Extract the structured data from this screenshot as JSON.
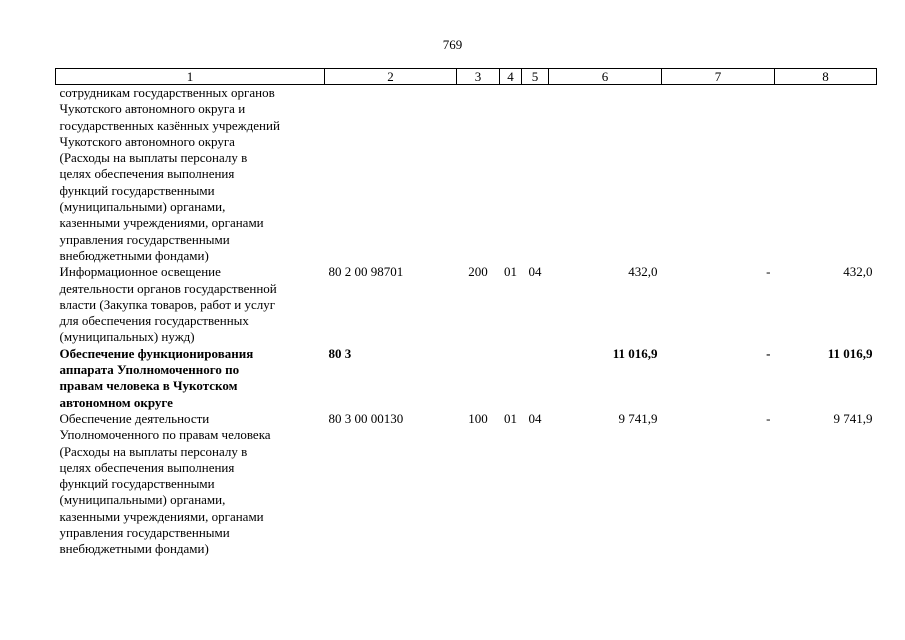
{
  "page_number": "769",
  "header": [
    "1",
    "2",
    "3",
    "4",
    "5",
    "6",
    "7",
    "8"
  ],
  "rows": [
    {
      "bold": false,
      "description": [
        "сотрудникам государственных органов",
        "Чукотского автономного округа и",
        "государственных казённых учреждений",
        "Чукотского автономного округа",
        "(Расходы на выплаты персоналу в",
        "целях обеспечения выполнения",
        "функций государственными",
        "(муниципальными) органами,",
        "казенными учреждениями, органами",
        "управления государственными",
        "внебюджетными фондами)"
      ],
      "code": "",
      "type": "",
      "section": "",
      "subsection": "",
      "col6": "",
      "col7": "",
      "col8": ""
    },
    {
      "bold": false,
      "description": [
        "Информационное освещение",
        "деятельности органов государственной",
        "власти (Закупка товаров, работ и услуг",
        "для обеспечения государственных",
        "(муниципальных) нужд)"
      ],
      "code": "80 2 00 98701",
      "type": "200",
      "section": "01",
      "subsection": "04",
      "col6": "432,0",
      "col7": "-",
      "col8": "432,0"
    },
    {
      "bold": true,
      "description": [
        "Обеспечение функционирования",
        "аппарата Уполномоченного по",
        "правам человека в Чукотском",
        "автономном округе"
      ],
      "code": "80 3",
      "type": "",
      "section": "",
      "subsection": "",
      "col6": "11 016,9",
      "col7": "-",
      "col8": "11 016,9"
    },
    {
      "bold": false,
      "description": [
        "Обеспечение деятельности",
        "Уполномоченного по правам человека",
        "(Расходы на выплаты персоналу в",
        "целях обеспечения выполнения",
        "функций государственными",
        "(муниципальными) органами,",
        "казенными учреждениями, органами",
        "управления государственными",
        "внебюджетными фондами)"
      ],
      "code": "80 3 00 00130",
      "type": "100",
      "section": "01",
      "subsection": "04",
      "col6": "9 741,9",
      "col7": "-",
      "col8": "9 741,9"
    }
  ]
}
